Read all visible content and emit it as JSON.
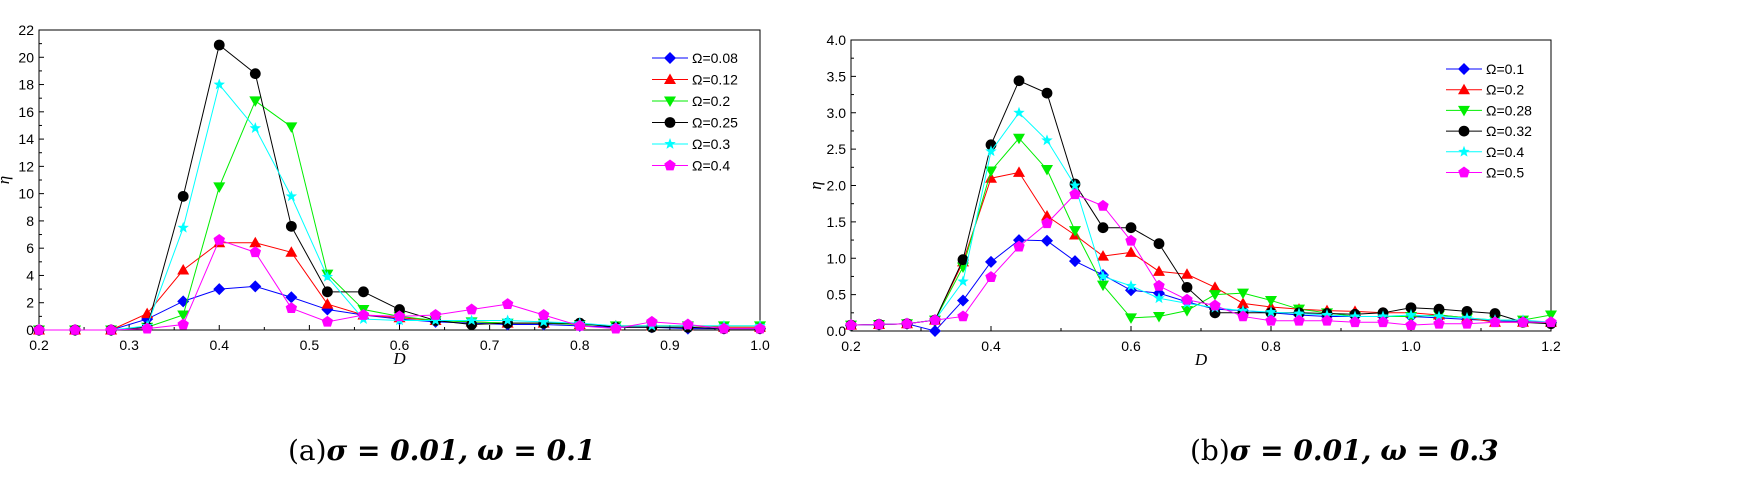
{
  "chart_data": [
    {
      "type": "line",
      "caption": {
        "prefix": "(a)",
        "sigma": "σ = 0.01,",
        "omega": "ω = 0.1"
      },
      "xlabel": "D",
      "ylabel": "η",
      "xlim": [
        0.2,
        1.0
      ],
      "ylim": [
        0,
        22
      ],
      "xticks": [
        "0.2",
        "0.3",
        "0.4",
        "0.5",
        "0.6",
        "0.7",
        "0.8",
        "0.9",
        "1.0"
      ],
      "yticks": [
        "0",
        "2",
        "4",
        "6",
        "8",
        "10",
        "12",
        "14",
        "16",
        "18",
        "20",
        "22"
      ],
      "legend_position": "top-right",
      "x": [
        0.2,
        0.24,
        0.28,
        0.32,
        0.36,
        0.4,
        0.44,
        0.48,
        0.52,
        0.56,
        0.6,
        0.64,
        0.68,
        0.72,
        0.76,
        0.8,
        0.84,
        0.88,
        0.92,
        0.96,
        1.0
      ],
      "series": [
        {
          "name": "Ω=0.08",
          "color": "#0000ff",
          "marker": "diamond",
          "values": [
            0,
            0,
            0,
            0.8,
            2.1,
            3.0,
            3.2,
            2.4,
            1.5,
            1.1,
            0.8,
            0.6,
            0.5,
            0.4,
            0.4,
            0.3,
            0.2,
            0.2,
            0.1,
            0.1,
            0.1
          ]
        },
        {
          "name": "Ω=0.12",
          "color": "#ff0000",
          "marker": "triangle-up",
          "values": [
            0,
            0,
            0,
            1.2,
            4.4,
            6.4,
            6.4,
            5.7,
            1.9,
            1.1,
            0.9,
            0.7,
            0.6,
            0.5,
            0.5,
            0.4,
            0.3,
            0.3,
            0.3,
            0.2,
            0.2
          ]
        },
        {
          "name": "Ω=0.2",
          "color": "#00ee00",
          "marker": "triangle-down",
          "values": [
            0,
            0,
            0,
            0.2,
            1.1,
            10.5,
            16.8,
            14.9,
            4.1,
            1.5,
            1.0,
            0.7,
            0.6,
            0.5,
            0.5,
            0.4,
            0.3,
            0.3,
            0.3,
            0.3,
            0.3
          ]
        },
        {
          "name": "Ω=0.25",
          "color": "#000000",
          "marker": "circle",
          "values": [
            0,
            0,
            0,
            0.2,
            9.8,
            20.9,
            18.8,
            7.6,
            2.8,
            2.8,
            1.5,
            0.7,
            0.4,
            0.5,
            0.5,
            0.5,
            0.2,
            0.2,
            0.2,
            0.1,
            0.1
          ]
        },
        {
          "name": "Ω=0.3",
          "color": "#00ffff",
          "marker": "star",
          "values": [
            0,
            0,
            0,
            0.3,
            7.5,
            18.0,
            14.8,
            9.8,
            3.9,
            0.8,
            0.7,
            0.7,
            0.7,
            0.7,
            0.6,
            0.5,
            0.3,
            0.3,
            0.3,
            0.3,
            0.3
          ]
        },
        {
          "name": "Ω=0.4",
          "color": "#ff00ff",
          "marker": "pentagon",
          "values": [
            0,
            0,
            0,
            0.1,
            0.4,
            6.6,
            5.7,
            1.6,
            0.6,
            1.1,
            1.0,
            1.1,
            1.5,
            1.9,
            1.1,
            0.3,
            0.1,
            0.6,
            0.4,
            0.1,
            0.1
          ]
        }
      ]
    },
    {
      "type": "line",
      "caption": {
        "prefix": "(b)",
        "sigma": "σ = 0.01,",
        "omega": "ω = 0.3"
      },
      "xlabel": "D",
      "ylabel": "η",
      "xlim": [
        0.2,
        1.2
      ],
      "ylim": [
        0,
        4.0
      ],
      "xticks": [
        "0.2",
        "0.4",
        "0.6",
        "0.8",
        "1.0",
        "1.2"
      ],
      "yticks": [
        "0.0",
        "0.5",
        "1.0",
        "1.5",
        "2.0",
        "2.5",
        "3.0",
        "3.5",
        "4.0"
      ],
      "legend_position": "top-right",
      "x": [
        0.2,
        0.24,
        0.28,
        0.32,
        0.36,
        0.4,
        0.44,
        0.48,
        0.52,
        0.56,
        0.6,
        0.64,
        0.68,
        0.72,
        0.76,
        0.8,
        0.84,
        0.88,
        0.92,
        0.96,
        1.0,
        1.04,
        1.08,
        1.12,
        1.16,
        1.2
      ],
      "series": [
        {
          "name": "Ω=0.1",
          "color": "#0000ff",
          "marker": "diamond",
          "values": [
            0.08,
            0.09,
            0.1,
            0.0,
            0.42,
            0.95,
            1.25,
            1.24,
            0.96,
            0.77,
            0.56,
            0.52,
            0.4,
            0.3,
            0.28,
            0.25,
            0.22,
            0.2,
            0.2,
            0.2,
            0.2,
            0.18,
            0.16,
            0.14,
            0.13,
            0.12
          ]
        },
        {
          "name": "Ω=0.2",
          "color": "#ff0000",
          "marker": "triangle-up",
          "values": [
            0.08,
            0.09,
            0.1,
            0.15,
            0.95,
            2.1,
            2.18,
            1.58,
            1.32,
            1.03,
            1.08,
            0.82,
            0.78,
            0.6,
            0.38,
            0.33,
            0.3,
            0.28,
            0.27,
            0.25,
            0.25,
            0.22,
            0.18,
            0.12,
            0.12,
            0.12
          ]
        },
        {
          "name": "Ω=0.28",
          "color": "#00ee00",
          "marker": "triangle-down",
          "values": [
            0.08,
            0.09,
            0.1,
            0.15,
            0.88,
            2.2,
            2.65,
            2.22,
            1.38,
            0.63,
            0.18,
            0.2,
            0.28,
            0.5,
            0.52,
            0.42,
            0.3,
            0.25,
            0.2,
            0.2,
            0.2,
            0.22,
            0.18,
            0.15,
            0.15,
            0.22
          ]
        },
        {
          "name": "Ω=0.32",
          "color": "#000000",
          "marker": "circle",
          "values": [
            0.08,
            0.09,
            0.1,
            0.15,
            0.98,
            2.56,
            3.44,
            3.27,
            2.02,
            1.42,
            1.42,
            1.2,
            0.6,
            0.25,
            0.25,
            0.25,
            0.25,
            0.24,
            0.23,
            0.25,
            0.32,
            0.3,
            0.27,
            0.24,
            0.12,
            0.1
          ]
        },
        {
          "name": "Ω=0.4",
          "color": "#00ffff",
          "marker": "star",
          "values": [
            0.08,
            0.09,
            0.1,
            0.15,
            0.68,
            2.47,
            3.0,
            2.62,
            2.0,
            0.75,
            0.62,
            0.45,
            0.38,
            0.32,
            0.28,
            0.26,
            0.24,
            0.22,
            0.2,
            0.2,
            0.22,
            0.2,
            0.18,
            0.15,
            0.15,
            0.12
          ]
        },
        {
          "name": "Ω=0.5",
          "color": "#ff00ff",
          "marker": "pentagon",
          "values": [
            0.08,
            0.09,
            0.1,
            0.15,
            0.2,
            0.74,
            1.16,
            1.48,
            1.88,
            1.72,
            1.24,
            0.62,
            0.43,
            0.35,
            0.2,
            0.14,
            0.14,
            0.14,
            0.12,
            0.12,
            0.08,
            0.1,
            0.1,
            0.12,
            0.12,
            0.12
          ]
        }
      ]
    }
  ]
}
